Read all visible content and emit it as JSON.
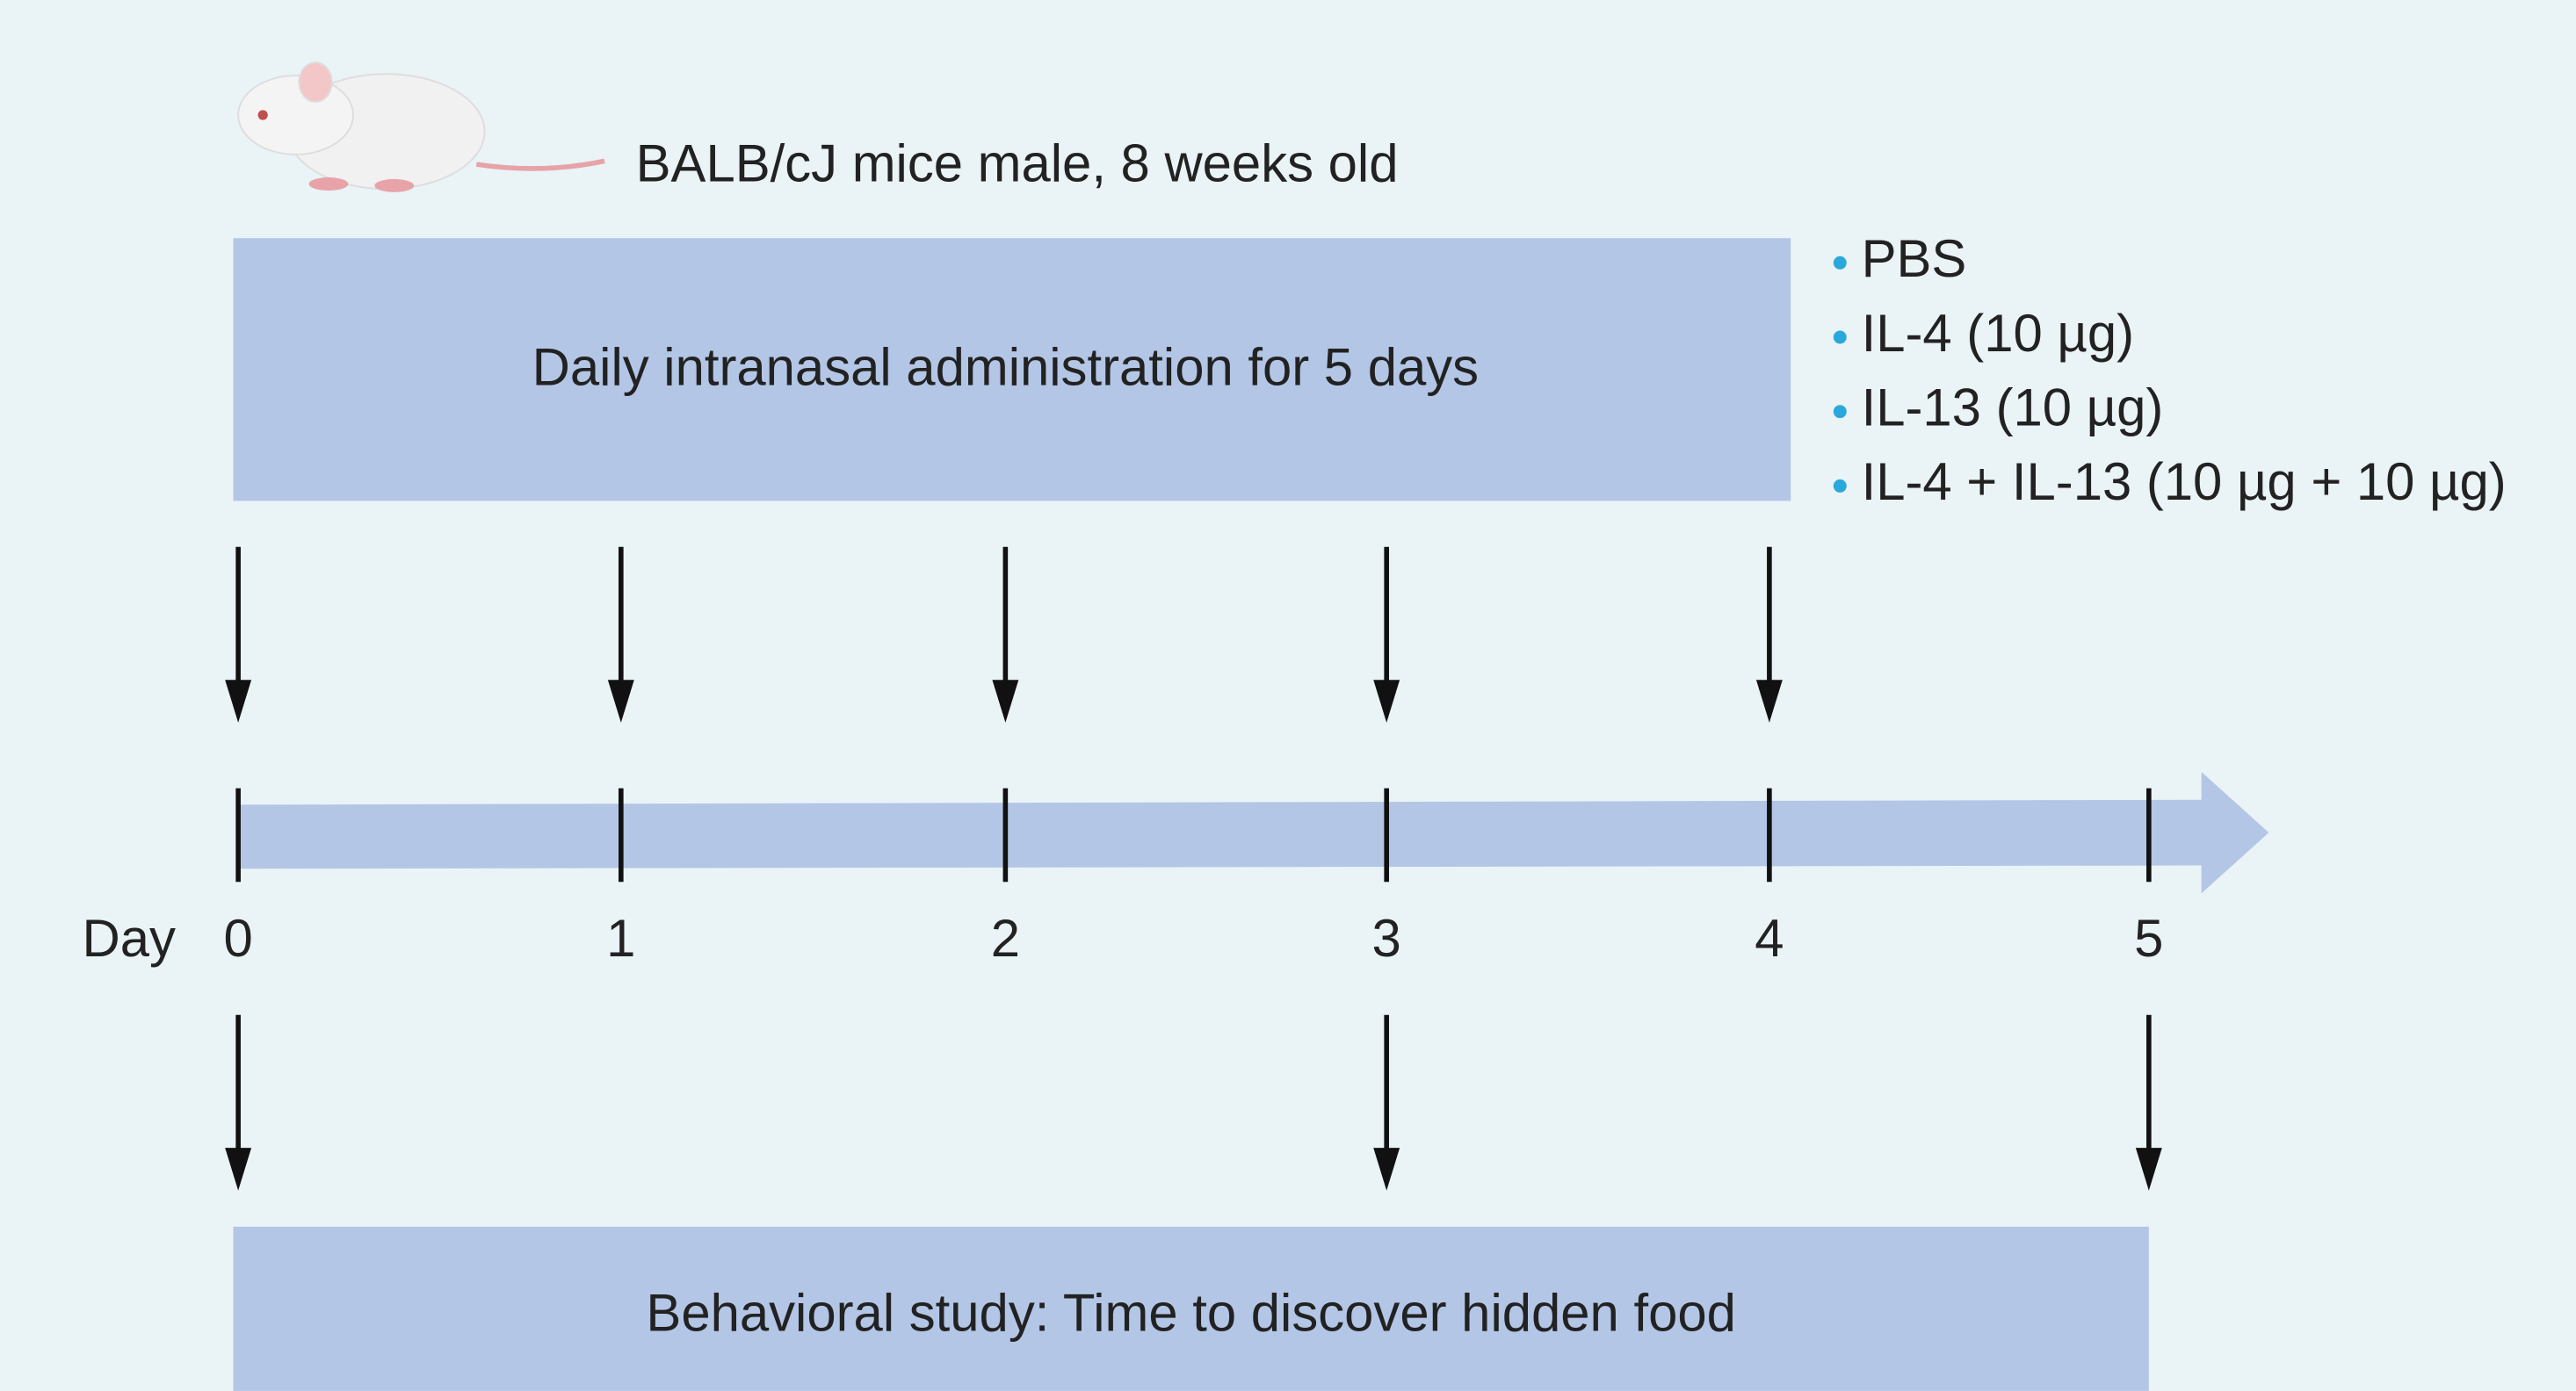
{
  "subject": "BALB/cJ mice male, 8 weeks old",
  "administration": {
    "label": "Daily intranasal administration for 5 days",
    "treatments": [
      "PBS",
      "IL-4 (10 µg)",
      "IL-13 (10 µg)",
      "IL-4 + IL-13 (10 µg + 10 µg)"
    ]
  },
  "timeline": {
    "label": "Day",
    "days": [
      "0",
      "1",
      "2",
      "3",
      "4",
      "5"
    ]
  },
  "behavior": {
    "label": "Behavioral study: Time to discover hidden food"
  }
}
